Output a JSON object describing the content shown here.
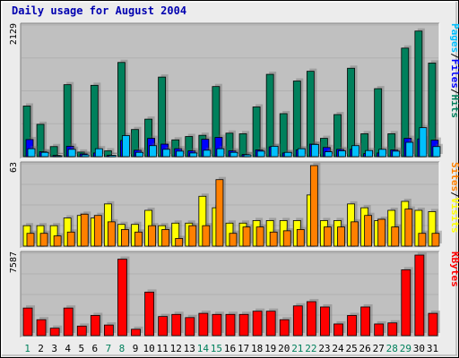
{
  "chart_data": [
    {
      "type": "bar",
      "title": "Daily usage for August 2004",
      "categories": [
        "1",
        "2",
        "3",
        "4",
        "5",
        "6",
        "7",
        "8",
        "9",
        "10",
        "11",
        "12",
        "13",
        "14",
        "15",
        "16",
        "17",
        "18",
        "19",
        "20",
        "21",
        "22",
        "23",
        "24",
        "25",
        "26",
        "27",
        "28",
        "29",
        "30",
        "31"
      ],
      "weekend_days": [
        "1",
        "7",
        "8",
        "14",
        "15",
        "21",
        "22",
        "28",
        "29"
      ],
      "ylim": [
        0,
        2129
      ],
      "ymax_label": "2129",
      "legend_parts": [
        "Pages",
        "/",
        "Files",
        "/",
        "Hits"
      ],
      "series": [
        {
          "name": "Hits",
          "color": "#00805c",
          "values": [
            830,
            530,
            165,
            1180,
            75,
            1170,
            95,
            1545,
            445,
            615,
            1305,
            275,
            330,
            350,
            1150,
            385,
            375,
            815,
            1350,
            705,
            1240,
            1400,
            300,
            690,
            1450,
            375,
            1115,
            375,
            1780,
            2060,
            1535
          ]
        },
        {
          "name": "Files",
          "color": "#0000ff",
          "values": [
            280,
            80,
            20,
            170,
            45,
            60,
            20,
            265,
            105,
            300,
            205,
            130,
            95,
            285,
            315,
            95,
            35,
            110,
            160,
            60,
            110,
            205,
            150,
            120,
            120,
            50,
            60,
            110,
            300,
            290,
            270
          ]
        },
        {
          "name": "Pages",
          "color": "#00c0ff",
          "values": [
            130,
            70,
            15,
            120,
            30,
            130,
            20,
            345,
            70,
            180,
            120,
            90,
            60,
            105,
            130,
            70,
            30,
            90,
            170,
            70,
            130,
            200,
            80,
            95,
            180,
            100,
            120,
            90,
            235,
            475,
            165
          ]
        }
      ]
    },
    {
      "type": "bar",
      "categories": [
        "1",
        "2",
        "3",
        "4",
        "5",
        "6",
        "7",
        "8",
        "9",
        "10",
        "11",
        "12",
        "13",
        "14",
        "15",
        "16",
        "17",
        "18",
        "19",
        "20",
        "21",
        "22",
        "23",
        "24",
        "25",
        "26",
        "27",
        "28",
        "29",
        "30",
        "31"
      ],
      "ylim": [
        0,
        63
      ],
      "ymax_label": "63",
      "legend_parts": [
        "Sites",
        "/",
        "Visits"
      ],
      "series": [
        {
          "name": "Visits",
          "color": "#ffff00",
          "values": [
            16,
            16,
            16,
            22,
            24,
            22,
            33,
            17,
            17,
            28,
            16,
            18,
            18,
            39,
            30,
            18,
            18,
            20,
            20,
            20,
            20,
            40,
            20,
            20,
            33,
            30,
            20,
            28,
            35,
            28,
            27
          ]
        },
        {
          "name": "Sites",
          "color": "#ff8000",
          "values": [
            10,
            10,
            8,
            11,
            25,
            24,
            19,
            13,
            11,
            16,
            13,
            6,
            16,
            16,
            52,
            10,
            15,
            15,
            11,
            12,
            13,
            63,
            15,
            15,
            19,
            24,
            21,
            15,
            29,
            10,
            10
          ]
        }
      ]
    },
    {
      "type": "bar",
      "categories": [
        "1",
        "2",
        "3",
        "4",
        "5",
        "6",
        "7",
        "8",
        "9",
        "10",
        "11",
        "12",
        "13",
        "14",
        "15",
        "16",
        "17",
        "18",
        "19",
        "20",
        "21",
        "22",
        "23",
        "24",
        "25",
        "26",
        "27",
        "28",
        "29",
        "30",
        "31"
      ],
      "ylim": [
        0,
        7587
      ],
      "ymax_label": "7587",
      "legend_parts": [
        "KBytes"
      ],
      "series": [
        {
          "name": "KBytes",
          "color": "#ff0000",
          "values": [
            2600,
            1500,
            700,
            2600,
            900,
            1900,
            1000,
            7200,
            600,
            4100,
            1800,
            2000,
            1700,
            2100,
            2000,
            2000,
            2000,
            2300,
            2300,
            1500,
            2800,
            3200,
            2700,
            1100,
            1900,
            2700,
            1100,
            1200,
            6200,
            7587,
            2100
          ]
        }
      ]
    }
  ]
}
